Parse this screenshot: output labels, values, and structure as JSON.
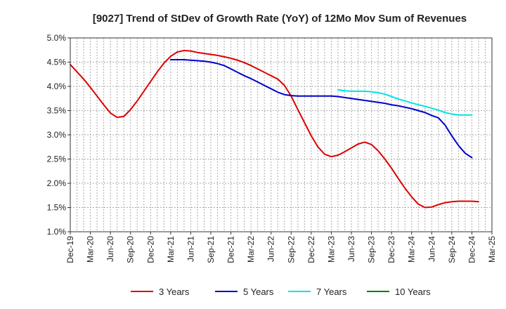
{
  "chart_data": {
    "type": "line",
    "title": "[9027]  Trend of StDev of Growth Rate (YoY) of 12Mo Mov Sum of Revenues",
    "xlabel": "",
    "ylabel": "",
    "ylim": [
      1.0,
      5.0
    ],
    "y_ticks": [
      "1.0%",
      "1.5%",
      "2.0%",
      "2.5%",
      "3.0%",
      "3.5%",
      "4.0%",
      "4.5%",
      "5.0%"
    ],
    "x_ticks": [
      "Dec-19",
      "Mar-20",
      "Jun-20",
      "Sep-20",
      "Dec-20",
      "Mar-21",
      "Jun-21",
      "Sep-21",
      "Dec-21",
      "Mar-22",
      "Jun-22",
      "Sep-22",
      "Dec-22",
      "Mar-23",
      "Jun-23",
      "Sep-23",
      "Dec-23",
      "Mar-24",
      "Jun-24",
      "Sep-24",
      "Dec-24",
      "Mar-25"
    ],
    "grid": true,
    "legend_position": "bottom",
    "series": [
      {
        "name": "3 Years",
        "color": "#dd0000",
        "points": [
          [
            0,
            4.45
          ],
          [
            1,
            4.3
          ],
          [
            2,
            4.15
          ],
          [
            3,
            3.98
          ],
          [
            4,
            3.8
          ],
          [
            5,
            3.62
          ],
          [
            6,
            3.45
          ],
          [
            7,
            3.36
          ],
          [
            8,
            3.38
          ],
          [
            9,
            3.52
          ],
          [
            10,
            3.7
          ],
          [
            11,
            3.9
          ],
          [
            12,
            4.1
          ],
          [
            13,
            4.3
          ],
          [
            14,
            4.48
          ],
          [
            15,
            4.62
          ],
          [
            16,
            4.71
          ],
          [
            17,
            4.74
          ],
          [
            18,
            4.73
          ],
          [
            19,
            4.7
          ],
          [
            20,
            4.68
          ],
          [
            21,
            4.66
          ],
          [
            22,
            4.64
          ],
          [
            23,
            4.61
          ],
          [
            24,
            4.58
          ],
          [
            25,
            4.54
          ],
          [
            26,
            4.49
          ],
          [
            27,
            4.43
          ],
          [
            28,
            4.36
          ],
          [
            29,
            4.29
          ],
          [
            30,
            4.22
          ],
          [
            31,
            4.15
          ],
          [
            32,
            4.02
          ],
          [
            33,
            3.8
          ],
          [
            34,
            3.52
          ],
          [
            35,
            3.25
          ],
          [
            36,
            2.98
          ],
          [
            37,
            2.75
          ],
          [
            38,
            2.6
          ],
          [
            39,
            2.55
          ],
          [
            40,
            2.58
          ],
          [
            41,
            2.65
          ],
          [
            42,
            2.73
          ],
          [
            43,
            2.81
          ],
          [
            44,
            2.85
          ],
          [
            45,
            2.8
          ],
          [
            46,
            2.67
          ],
          [
            47,
            2.5
          ],
          [
            48,
            2.31
          ],
          [
            49,
            2.1
          ],
          [
            50,
            1.9
          ],
          [
            51,
            1.72
          ],
          [
            52,
            1.57
          ],
          [
            53,
            1.5
          ],
          [
            54,
            1.51
          ],
          [
            55,
            1.56
          ],
          [
            56,
            1.6
          ],
          [
            57,
            1.62
          ],
          [
            58,
            1.63
          ],
          [
            59,
            1.63
          ],
          [
            60,
            1.63
          ],
          [
            61,
            1.62
          ]
        ]
      },
      {
        "name": "5 Years",
        "color": "#0000cc",
        "points": [
          [
            15,
            4.55
          ],
          [
            16,
            4.55
          ],
          [
            17,
            4.55
          ],
          [
            18,
            4.54
          ],
          [
            19,
            4.53
          ],
          [
            20,
            4.52
          ],
          [
            21,
            4.5
          ],
          [
            22,
            4.47
          ],
          [
            23,
            4.43
          ],
          [
            24,
            4.36
          ],
          [
            25,
            4.29
          ],
          [
            26,
            4.22
          ],
          [
            27,
            4.16
          ],
          [
            28,
            4.09
          ],
          [
            29,
            4.02
          ],
          [
            30,
            3.95
          ],
          [
            31,
            3.88
          ],
          [
            32,
            3.83
          ],
          [
            33,
            3.81
          ],
          [
            34,
            3.8
          ],
          [
            35,
            3.8
          ],
          [
            36,
            3.8
          ],
          [
            37,
            3.8
          ],
          [
            38,
            3.8
          ],
          [
            39,
            3.8
          ],
          [
            40,
            3.79
          ],
          [
            41,
            3.77
          ],
          [
            42,
            3.75
          ],
          [
            43,
            3.73
          ],
          [
            44,
            3.71
          ],
          [
            45,
            3.69
          ],
          [
            46,
            3.67
          ],
          [
            47,
            3.65
          ],
          [
            48,
            3.62
          ],
          [
            49,
            3.6
          ],
          [
            50,
            3.57
          ],
          [
            51,
            3.54
          ],
          [
            52,
            3.5
          ],
          [
            53,
            3.46
          ],
          [
            54,
            3.4
          ],
          [
            55,
            3.35
          ],
          [
            56,
            3.2
          ],
          [
            57,
            2.98
          ],
          [
            58,
            2.78
          ],
          [
            59,
            2.62
          ],
          [
            60,
            2.53
          ]
        ]
      },
      {
        "name": "7 Years",
        "color": "#00e5e5",
        "points": [
          [
            40,
            3.93
          ],
          [
            41,
            3.91
          ],
          [
            42,
            3.9
          ],
          [
            43,
            3.9
          ],
          [
            44,
            3.9
          ],
          [
            45,
            3.89
          ],
          [
            46,
            3.87
          ],
          [
            47,
            3.84
          ],
          [
            48,
            3.79
          ],
          [
            49,
            3.74
          ],
          [
            50,
            3.7
          ],
          [
            51,
            3.66
          ],
          [
            52,
            3.62
          ],
          [
            53,
            3.59
          ],
          [
            54,
            3.55
          ],
          [
            55,
            3.51
          ],
          [
            56,
            3.46
          ],
          [
            57,
            3.43
          ],
          [
            58,
            3.41
          ],
          [
            59,
            3.41
          ],
          [
            60,
            3.41
          ]
        ]
      },
      {
        "name": "10 Years",
        "color": "#008000",
        "points": []
      }
    ]
  }
}
